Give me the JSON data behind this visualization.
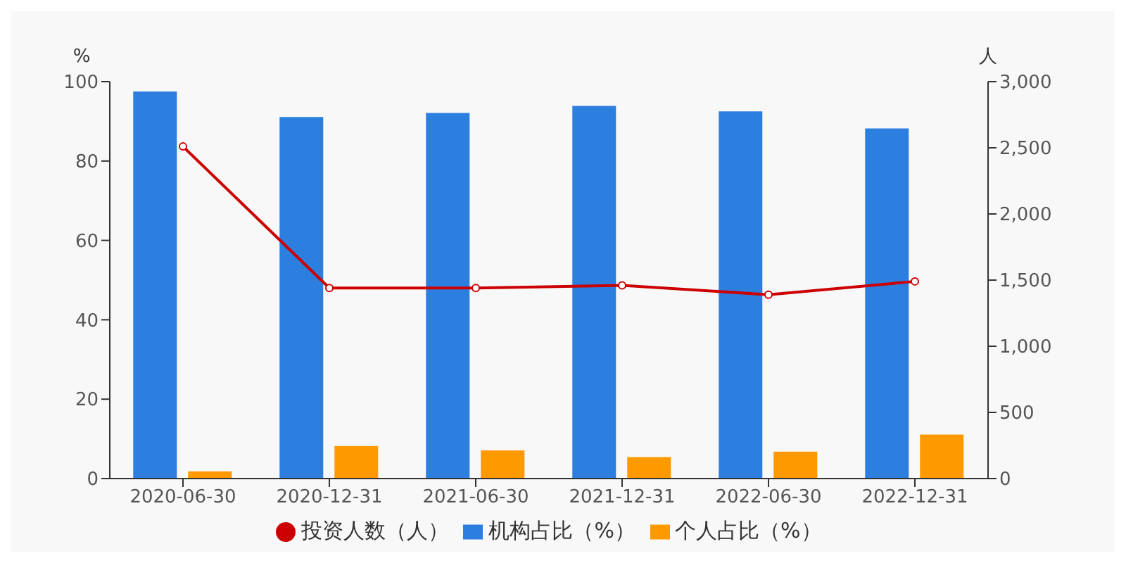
{
  "chart_data": {
    "type": "bar",
    "ylabel": "%",
    "y2label": "人",
    "categories": [
      "2020-06-30",
      "2020-12-31",
      "2021-06-30",
      "2021-12-31",
      "2022-06-30",
      "2022-12-31"
    ],
    "series": [
      {
        "name": "投资人数（人）",
        "type": "line",
        "axis": "y2",
        "color": "#cc0000",
        "marker": "circle",
        "values": [
          2510,
          1440,
          1440,
          1460,
          1390,
          1490
        ]
      },
      {
        "name": "机构占比（%）",
        "color": "#2c7fdf",
        "values": [
          97.5,
          91.1,
          92.1,
          93.9,
          92.5,
          88.2
        ]
      },
      {
        "name": "个人占比（%）",
        "color": "#ff9900",
        "values": [
          1.8,
          8.2,
          7.1,
          5.4,
          6.8,
          11.1
        ]
      }
    ],
    "ylim": [
      0,
      100
    ],
    "yticks": [
      0,
      20,
      40,
      60,
      80,
      100
    ],
    "y2lim": [
      0,
      3000
    ],
    "y2ticks": [
      0,
      500,
      {
        "value": 1000,
        "label": "1,000"
      },
      {
        "value": 1500,
        "label": "1,500"
      },
      {
        "value": 2000,
        "label": "2,000"
      },
      {
        "value": 2500,
        "label": "2,500"
      },
      {
        "value": 3000,
        "label": "3,000"
      }
    ],
    "grid": false,
    "legend": "bottom"
  }
}
